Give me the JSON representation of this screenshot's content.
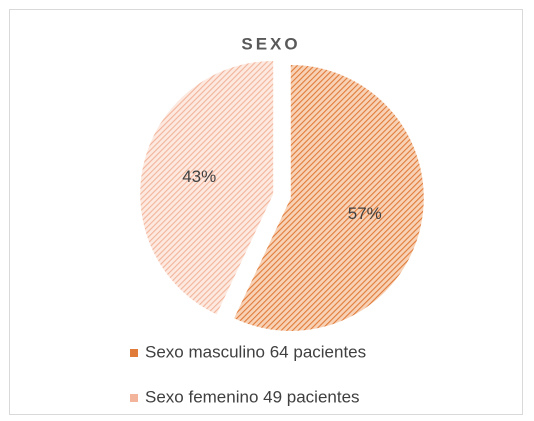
{
  "chart_data": {
    "type": "pie",
    "title": "SEXO",
    "categories": [
      "Sexo masculino 64 pacientes",
      "Sexo femenino 49 pacientes"
    ],
    "values": [
      57,
      43
    ],
    "value_labels": [
      "57%",
      "43%"
    ],
    "colors": [
      "#e07b39",
      "#f2b49a"
    ],
    "legend": "bottom"
  }
}
